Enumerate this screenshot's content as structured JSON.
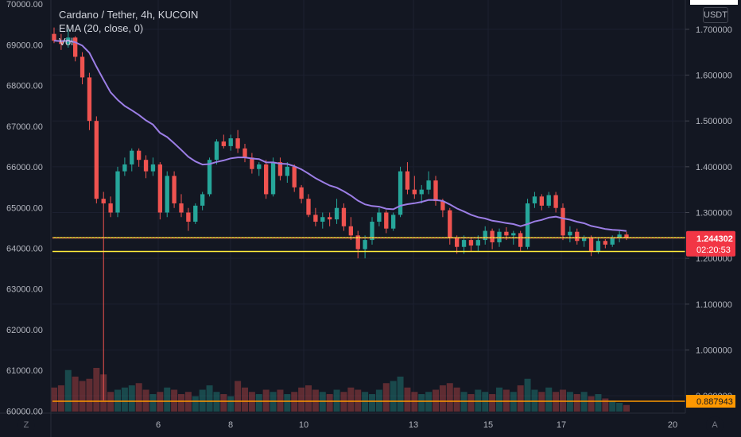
{
  "legend": {
    "title": "Cardano / Tether, 4h, KUCOIN",
    "ema": "EMA (20, close, 0)",
    "vol": "Vol"
  },
  "currency": "USDT",
  "buttons": {
    "left": "Z",
    "right": "A"
  },
  "left_axis": {
    "ticks": [
      "70000.00",
      "69000.00",
      "68000.00",
      "67000.00",
      "66000.00",
      "65000.00",
      "64000.00",
      "63000.00",
      "62000.00",
      "61000.00",
      "60000.00"
    ],
    "range": [
      59950,
      70100
    ]
  },
  "right_axis": {
    "ticks": [
      "1.700000",
      "1.600000",
      "1.500000",
      "1.400000",
      "1.300000",
      "1.200000",
      "1.100000",
      "1.000000",
      "0.900000"
    ],
    "range": [
      0.862,
      1.764
    ]
  },
  "time_axis": [
    "6",
    "8",
    "10",
    "13",
    "15",
    "17",
    "20"
  ],
  "price_tag": {
    "value": "1.244302",
    "countdown": "02:20:53",
    "color": "#f23645"
  },
  "level_tag": {
    "value": "0.887943",
    "color": "#ff9800"
  },
  "lines": {
    "yellow_a": 1.245,
    "yellow_b": 1.215,
    "orange": 0.888,
    "yellow_color": "#ffeb3b",
    "orange_color": "#ff9800"
  },
  "colors": {
    "up": "#26a69a",
    "down": "#ef5350",
    "ema": "#9c7ee6"
  },
  "chart_data": {
    "type": "candlestick",
    "series": [
      {
        "name": "Cardano / Tether",
        "ohlc": [
          [
            1.69,
            1.704,
            1.67,
            1.675
          ],
          [
            1.675,
            1.69,
            1.655,
            1.668
          ],
          [
            1.668,
            1.7,
            1.66,
            1.682
          ],
          [
            1.682,
            1.685,
            1.63,
            1.64
          ],
          [
            1.64,
            1.65,
            1.58,
            1.595
          ],
          [
            1.595,
            1.605,
            1.48,
            1.5
          ],
          [
            1.5,
            1.51,
            1.32,
            1.33
          ],
          [
            1.33,
            1.345,
            0.89,
            1.32
          ],
          [
            1.32,
            1.335,
            1.29,
            1.3
          ],
          [
            1.3,
            1.4,
            1.29,
            1.39
          ],
          [
            1.39,
            1.42,
            1.38,
            1.405
          ],
          [
            1.405,
            1.44,
            1.39,
            1.435
          ],
          [
            1.435,
            1.44,
            1.4,
            1.415
          ],
          [
            1.415,
            1.425,
            1.375,
            1.39
          ],
          [
            1.39,
            1.42,
            1.38,
            1.405
          ],
          [
            1.405,
            1.41,
            1.285,
            1.3
          ],
          [
            1.3,
            1.39,
            1.29,
            1.38
          ],
          [
            1.38,
            1.39,
            1.31,
            1.32
          ],
          [
            1.32,
            1.34,
            1.29,
            1.3
          ],
          [
            1.3,
            1.31,
            1.26,
            1.28
          ],
          [
            1.28,
            1.32,
            1.275,
            1.315
          ],
          [
            1.315,
            1.345,
            1.305,
            1.34
          ],
          [
            1.34,
            1.42,
            1.335,
            1.415
          ],
          [
            1.415,
            1.46,
            1.405,
            1.455
          ],
          [
            1.455,
            1.47,
            1.44,
            1.445
          ],
          [
            1.445,
            1.47,
            1.435,
            1.462
          ],
          [
            1.462,
            1.48,
            1.43,
            1.44
          ],
          [
            1.44,
            1.45,
            1.41,
            1.42
          ],
          [
            1.42,
            1.43,
            1.385,
            1.395
          ],
          [
            1.395,
            1.41,
            1.38,
            1.405
          ],
          [
            1.405,
            1.415,
            1.33,
            1.34
          ],
          [
            1.34,
            1.42,
            1.335,
            1.41
          ],
          [
            1.41,
            1.42,
            1.37,
            1.38
          ],
          [
            1.38,
            1.41,
            1.365,
            1.4
          ],
          [
            1.4,
            1.405,
            1.345,
            1.355
          ],
          [
            1.355,
            1.36,
            1.32,
            1.33
          ],
          [
            1.33,
            1.34,
            1.29,
            1.295
          ],
          [
            1.295,
            1.31,
            1.27,
            1.28
          ],
          [
            1.28,
            1.3,
            1.265,
            1.29
          ],
          [
            1.29,
            1.3,
            1.27,
            1.285
          ],
          [
            1.285,
            1.33,
            1.275,
            1.31
          ],
          [
            1.31,
            1.32,
            1.26,
            1.27
          ],
          [
            1.27,
            1.29,
            1.24,
            1.25
          ],
          [
            1.25,
            1.26,
            1.2,
            1.22
          ],
          [
            1.22,
            1.25,
            1.2,
            1.24
          ],
          [
            1.24,
            1.29,
            1.23,
            1.28
          ],
          [
            1.28,
            1.31,
            1.27,
            1.3
          ],
          [
            1.3,
            1.305,
            1.255,
            1.265
          ],
          [
            1.265,
            1.3,
            1.26,
            1.295
          ],
          [
            1.295,
            1.4,
            1.29,
            1.39
          ],
          [
            1.39,
            1.41,
            1.34,
            1.35
          ],
          [
            1.35,
            1.38,
            1.33,
            1.34
          ],
          [
            1.34,
            1.36,
            1.32,
            1.35
          ],
          [
            1.35,
            1.39,
            1.34,
            1.37
          ],
          [
            1.37,
            1.38,
            1.315,
            1.325
          ],
          [
            1.325,
            1.33,
            1.29,
            1.305
          ],
          [
            1.305,
            1.31,
            1.23,
            1.245
          ],
          [
            1.245,
            1.25,
            1.21,
            1.225
          ],
          [
            1.225,
            1.25,
            1.21,
            1.24
          ],
          [
            1.24,
            1.245,
            1.215,
            1.228
          ],
          [
            1.228,
            1.25,
            1.215,
            1.24
          ],
          [
            1.24,
            1.27,
            1.23,
            1.26
          ],
          [
            1.26,
            1.265,
            1.22,
            1.235
          ],
          [
            1.235,
            1.265,
            1.225,
            1.258
          ],
          [
            1.258,
            1.268,
            1.24,
            1.25
          ],
          [
            1.25,
            1.26,
            1.23,
            1.255
          ],
          [
            1.255,
            1.26,
            1.215,
            1.225
          ],
          [
            1.225,
            1.33,
            1.22,
            1.32
          ],
          [
            1.32,
            1.345,
            1.31,
            1.335
          ],
          [
            1.335,
            1.34,
            1.305,
            1.315
          ],
          [
            1.315,
            1.345,
            1.31,
            1.338
          ],
          [
            1.338,
            1.345,
            1.3,
            1.31
          ],
          [
            1.31,
            1.32,
            1.24,
            1.25
          ],
          [
            1.25,
            1.27,
            1.235,
            1.258
          ],
          [
            1.258,
            1.265,
            1.23,
            1.238
          ],
          [
            1.238,
            1.25,
            1.225,
            1.245
          ],
          [
            1.245,
            1.25,
            1.205,
            1.215
          ],
          [
            1.215,
            1.245,
            1.21,
            1.238
          ],
          [
            1.238,
            1.242,
            1.222,
            1.23
          ],
          [
            1.23,
            1.25,
            1.225,
            1.245
          ],
          [
            1.245,
            1.26,
            1.235,
            1.252
          ],
          [
            1.252,
            1.258,
            1.24,
            1.244
          ]
        ],
        "volume": [
          0.55,
          0.6,
          0.95,
          0.8,
          0.7,
          0.75,
          1.0,
          0.85,
          0.45,
          0.5,
          0.55,
          0.6,
          0.65,
          0.5,
          0.4,
          0.45,
          0.55,
          0.5,
          0.4,
          0.45,
          0.35,
          0.5,
          0.6,
          0.45,
          0.4,
          0.35,
          0.7,
          0.55,
          0.45,
          0.4,
          0.5,
          0.45,
          0.5,
          0.4,
          0.45,
          0.55,
          0.6,
          0.5,
          0.45,
          0.4,
          0.5,
          0.45,
          0.55,
          0.5,
          0.45,
          0.4,
          0.5,
          0.65,
          0.7,
          0.8,
          0.55,
          0.45,
          0.4,
          0.45,
          0.5,
          0.6,
          0.65,
          0.55,
          0.45,
          0.4,
          0.5,
          0.45,
          0.4,
          0.55,
          0.5,
          0.45,
          0.6,
          0.75,
          0.5,
          0.45,
          0.55,
          0.45,
          0.5,
          0.45,
          0.4,
          0.45,
          0.35,
          0.4,
          0.3,
          0.25,
          0.2,
          0.15
        ]
      }
    ]
  }
}
